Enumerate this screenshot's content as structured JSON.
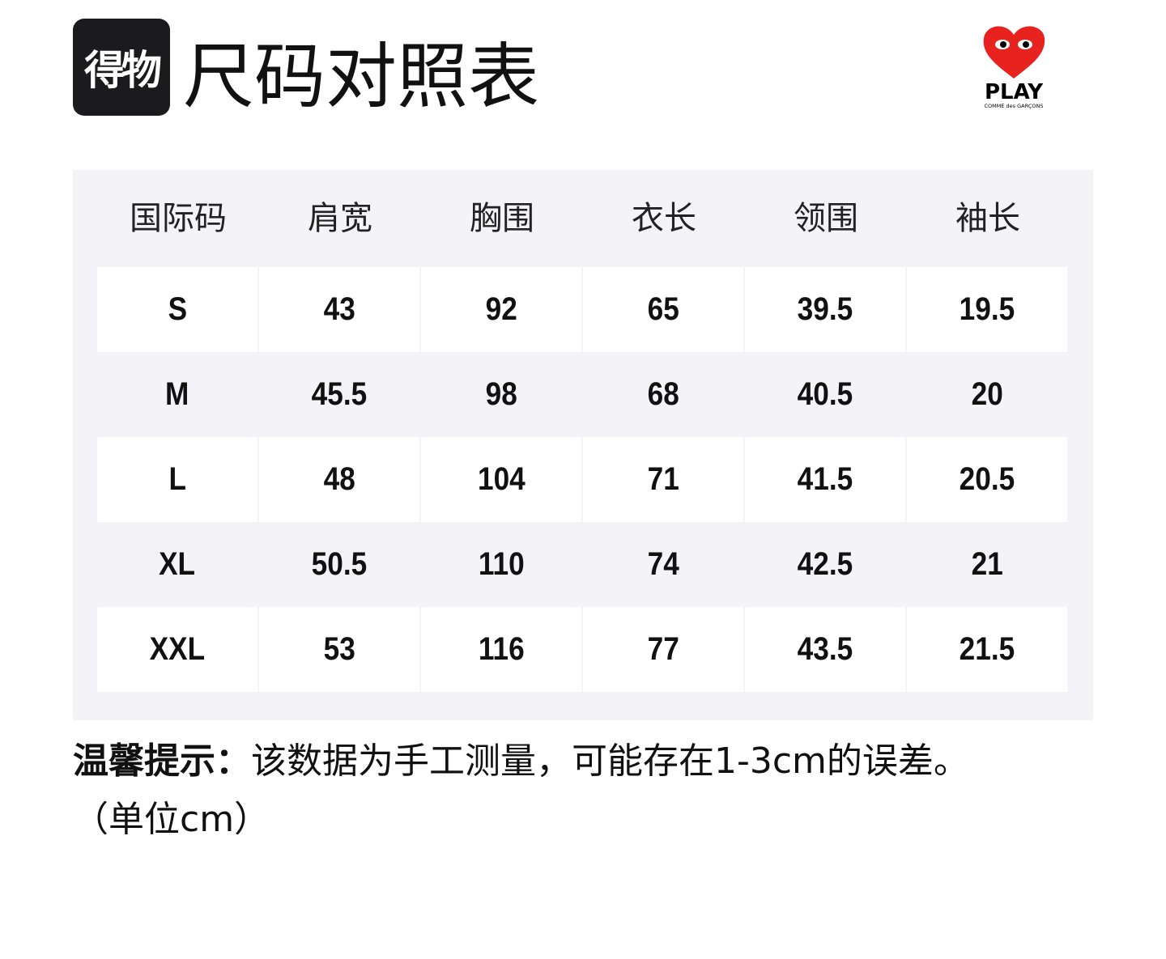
{
  "header": {
    "brand_logo_text": "得物",
    "title": "尺码对照表",
    "play_logo_text": "PLAY",
    "play_logo_subtext": "COMME des GARÇONS"
  },
  "table": {
    "columns": [
      "国际码",
      "肩宽",
      "胸围",
      "衣长",
      "领围",
      "袖长"
    ],
    "rows": [
      [
        "S",
        "43",
        "92",
        "65",
        "39.5",
        "19.5"
      ],
      [
        "M",
        "45.5",
        "98",
        "68",
        "40.5",
        "20"
      ],
      [
        "L",
        "48",
        "104",
        "71",
        "41.5",
        "20.5"
      ],
      [
        "XL",
        "50.5",
        "110",
        "74",
        "42.5",
        "21"
      ],
      [
        "XXL",
        "53",
        "116",
        "77",
        "43.5",
        "21.5"
      ]
    ]
  },
  "note": {
    "label": "温馨提示：",
    "text": "该数据为手工测量，可能存在1-3cm的误差。",
    "unit": "（单位cm）"
  },
  "colors": {
    "panel": "#f3f3f8",
    "heart": "#e8231f"
  }
}
